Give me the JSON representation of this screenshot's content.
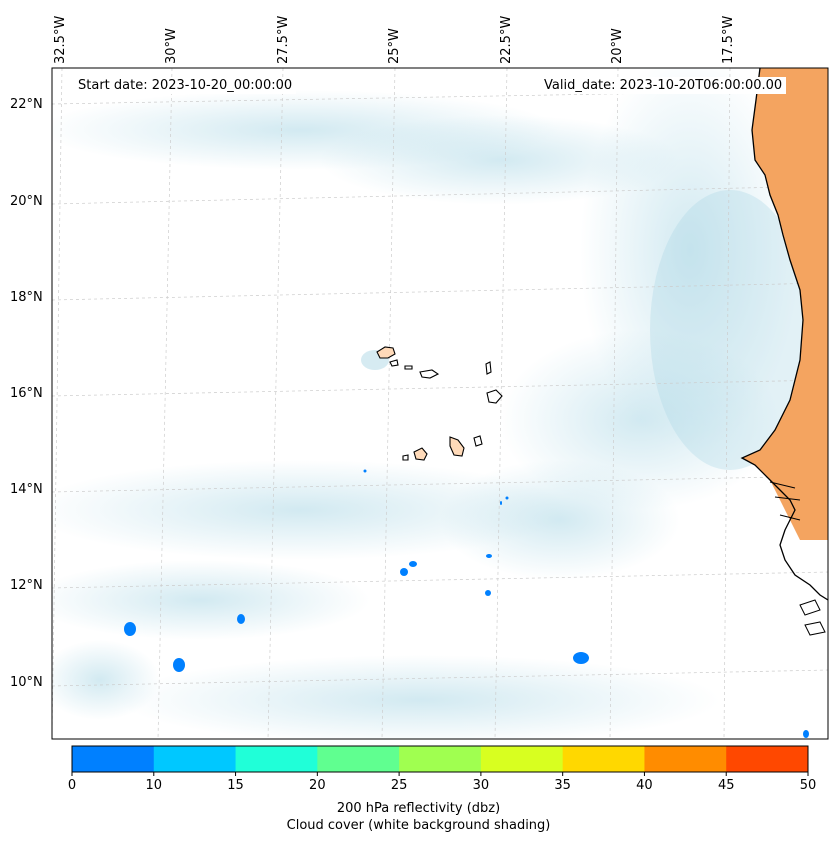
{
  "header": {
    "start_date": "Start date: 2023-10-20_00:00:00",
    "valid_date": "Valid_date: 2023-10-20T06:00:00.00"
  },
  "longitude_labels": [
    "32.5°W",
    "30°W",
    "27.5°W",
    "25°W",
    "22.5°W",
    "20°W",
    "17.5°W"
  ],
  "latitude_labels": [
    "22°N",
    "20°N",
    "18°N",
    "16°N",
    "14°N",
    "12°N",
    "10°N"
  ],
  "colorbar": {
    "ticks": [
      "0",
      "10",
      "15",
      "20",
      "25",
      "30",
      "35",
      "40",
      "45",
      "50"
    ],
    "colors": [
      "#0080ff",
      "#00c8ff",
      "#20ffd8",
      "#60ff90",
      "#a0ff50",
      "#d8ff20",
      "#ffd800",
      "#ff8c00",
      "#ff4800"
    ],
    "label": "200 hPa reflectivity (dbz)",
    "sublabel": "Cloud cover (white background shading)"
  },
  "colors": {
    "land": "#f4a460",
    "cloud": "#add8e6",
    "reflectivity_low": "#0080ff",
    "coastline": "#000000",
    "grid": "#cccccc"
  }
}
